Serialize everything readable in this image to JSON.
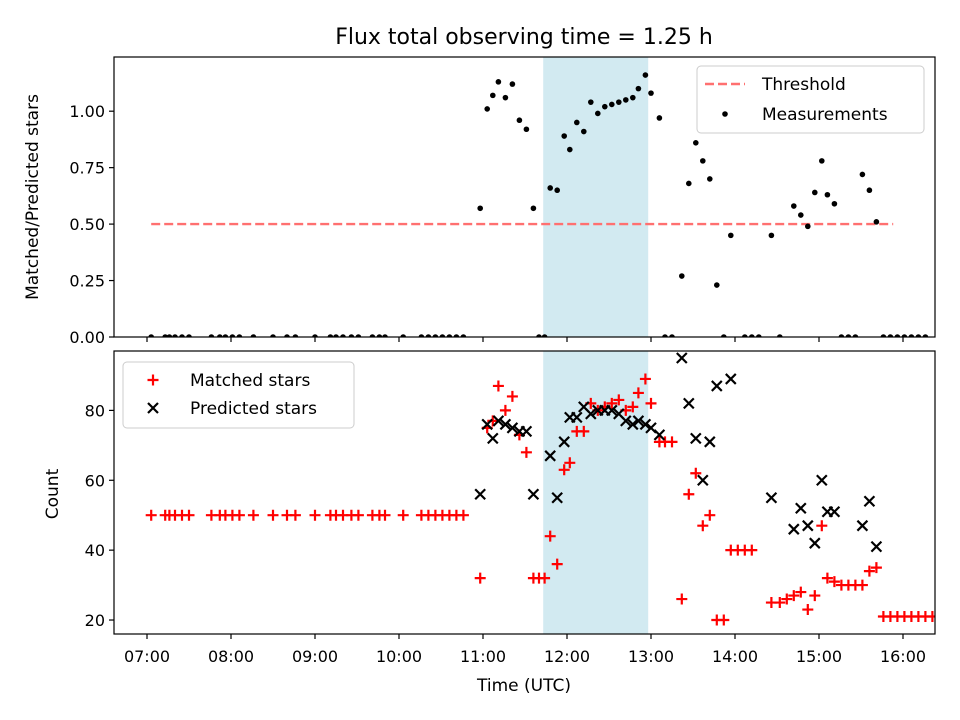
{
  "chart_data": [
    {
      "type": "scatter",
      "title": "Flux total observing time = 1.25 h",
      "xlabel": "",
      "ylabel": "Matched/Predicted stars",
      "ylim": [
        0,
        1.24
      ],
      "yticks": [
        0.0,
        0.25,
        0.5,
        0.75,
        1.0
      ],
      "ytick_labels": [
        "0.00",
        "0.25",
        "0.50",
        "0.75",
        "1.00"
      ],
      "legend": {
        "placement": "top-right",
        "items": [
          "Threshold",
          "Measurements"
        ]
      },
      "highlight_span": {
        "from": "11:43",
        "to": "12:58",
        "color": "#add8e6"
      },
      "threshold": {
        "name": "Threshold",
        "value": 0.5,
        "from": "07:03",
        "to": "15:53",
        "color": "#ff7070"
      },
      "series": [
        {
          "name": "Measurements",
          "marker": "dot",
          "color": "#000000",
          "points": [
            [
              "07:03",
              0
            ],
            [
              "07:13",
              0
            ],
            [
              "07:16",
              0
            ],
            [
              "07:20",
              0
            ],
            [
              "07:25",
              0
            ],
            [
              "07:30",
              0
            ],
            [
              "07:46",
              0
            ],
            [
              "07:52",
              0
            ],
            [
              "07:56",
              0
            ],
            [
              "08:01",
              0
            ],
            [
              "08:06",
              0
            ],
            [
              "08:16",
              0
            ],
            [
              "08:30",
              0
            ],
            [
              "08:40",
              0
            ],
            [
              "08:46",
              0
            ],
            [
              "09:00",
              0
            ],
            [
              "09:11",
              0
            ],
            [
              "09:15",
              0
            ],
            [
              "09:20",
              0
            ],
            [
              "09:26",
              0
            ],
            [
              "09:31",
              0
            ],
            [
              "09:41",
              0
            ],
            [
              "09:46",
              0
            ],
            [
              "09:50",
              0
            ],
            [
              "10:03",
              0
            ],
            [
              "10:16",
              0
            ],
            [
              "10:21",
              0
            ],
            [
              "10:26",
              0
            ],
            [
              "10:31",
              0
            ],
            [
              "10:36",
              0
            ],
            [
              "10:41",
              0
            ],
            [
              "10:46",
              0
            ],
            [
              "10:58",
              0.57
            ],
            [
              "11:03",
              1.01
            ],
            [
              "11:07",
              1.07
            ],
            [
              "11:11",
              1.13
            ],
            [
              "11:16",
              1.06
            ],
            [
              "11:21",
              1.12
            ],
            [
              "11:26",
              0.96
            ],
            [
              "11:31",
              0.92
            ],
            [
              "11:36",
              0.57
            ],
            [
              "11:40",
              0
            ],
            [
              "11:44",
              0
            ],
            [
              "11:48",
              0.66
            ],
            [
              "11:53",
              0.65
            ],
            [
              "11:58",
              0.89
            ],
            [
              "12:02",
              0.83
            ],
            [
              "12:07",
              0.95
            ],
            [
              "12:12",
              0.91
            ],
            [
              "12:17",
              1.04
            ],
            [
              "12:22",
              0.99
            ],
            [
              "12:27",
              1.02
            ],
            [
              "12:32",
              1.03
            ],
            [
              "12:37",
              1.04
            ],
            [
              "12:42",
              1.05
            ],
            [
              "12:47",
              1.06
            ],
            [
              "12:51",
              1.1
            ],
            [
              "12:56",
              1.16
            ],
            [
              "13:00",
              1.08
            ],
            [
              "13:06",
              0.97
            ],
            [
              "13:10",
              0
            ],
            [
              "13:15",
              0
            ],
            [
              "13:22",
              0.27
            ],
            [
              "13:27",
              0.68
            ],
            [
              "13:32",
              0.86
            ],
            [
              "13:37",
              0.78
            ],
            [
              "13:42",
              0.7
            ],
            [
              "13:47",
              0.23
            ],
            [
              "13:52",
              0
            ],
            [
              "13:57",
              0.45
            ],
            [
              "14:07",
              0
            ],
            [
              "14:12",
              0
            ],
            [
              "14:17",
              0
            ],
            [
              "14:26",
              0.45
            ],
            [
              "14:32",
              0
            ],
            [
              "14:42",
              0.58
            ],
            [
              "14:47",
              0.54
            ],
            [
              "14:52",
              0.49
            ],
            [
              "14:57",
              0.64
            ],
            [
              "15:02",
              0.78
            ],
            [
              "15:06",
              0.63
            ],
            [
              "15:11",
              0.59
            ],
            [
              "15:16",
              0
            ],
            [
              "15:21",
              0
            ],
            [
              "15:26",
              0
            ],
            [
              "15:31",
              0.72
            ],
            [
              "15:36",
              0.65
            ],
            [
              "15:41",
              0.51
            ],
            [
              "15:46",
              0
            ],
            [
              "15:51",
              0
            ],
            [
              "15:56",
              0
            ],
            [
              "16:01",
              0
            ],
            [
              "16:06",
              0
            ],
            [
              "16:11",
              0
            ],
            [
              "16:16",
              0
            ]
          ]
        }
      ]
    },
    {
      "type": "scatter",
      "title": "",
      "xlabel": "Time (UTC)",
      "ylabel": "Count",
      "ylim": [
        16,
        97
      ],
      "yticks": [
        20,
        40,
        60,
        80
      ],
      "xticks": [
        "07:00",
        "08:00",
        "09:00",
        "10:00",
        "11:00",
        "12:00",
        "13:00",
        "14:00",
        "15:00",
        "16:00"
      ],
      "legend": {
        "placement": "top-left",
        "items": [
          "Matched stars",
          "Predicted stars"
        ]
      },
      "highlight_span": {
        "from": "11:43",
        "to": "12:58",
        "color": "#add8e6"
      },
      "series": [
        {
          "name": "Matched stars",
          "marker": "plus",
          "color": "#ff0000",
          "points": [
            [
              "07:03",
              50
            ],
            [
              "07:13",
              50
            ],
            [
              "07:16",
              50
            ],
            [
              "07:20",
              50
            ],
            [
              "07:25",
              50
            ],
            [
              "07:30",
              50
            ],
            [
              "07:46",
              50
            ],
            [
              "07:52",
              50
            ],
            [
              "07:56",
              50
            ],
            [
              "08:01",
              50
            ],
            [
              "08:06",
              50
            ],
            [
              "08:16",
              50
            ],
            [
              "08:30",
              50
            ],
            [
              "08:40",
              50
            ],
            [
              "08:46",
              50
            ],
            [
              "09:00",
              50
            ],
            [
              "09:11",
              50
            ],
            [
              "09:15",
              50
            ],
            [
              "09:20",
              50
            ],
            [
              "09:26",
              50
            ],
            [
              "09:31",
              50
            ],
            [
              "09:41",
              50
            ],
            [
              "09:46",
              50
            ],
            [
              "09:50",
              50
            ],
            [
              "10:03",
              50
            ],
            [
              "10:16",
              50
            ],
            [
              "10:21",
              50
            ],
            [
              "10:26",
              50
            ],
            [
              "10:31",
              50
            ],
            [
              "10:36",
              50
            ],
            [
              "10:41",
              50
            ],
            [
              "10:46",
              50
            ],
            [
              "10:58",
              32
            ],
            [
              "11:03",
              75
            ],
            [
              "11:07",
              77
            ],
            [
              "11:11",
              87
            ],
            [
              "11:16",
              80
            ],
            [
              "11:21",
              84
            ],
            [
              "11:26",
              73
            ],
            [
              "11:31",
              68
            ],
            [
              "11:36",
              32
            ],
            [
              "11:40",
              32
            ],
            [
              "11:44",
              32
            ],
            [
              "11:48",
              44
            ],
            [
              "11:53",
              36
            ],
            [
              "11:58",
              63
            ],
            [
              "12:02",
              65
            ],
            [
              "12:07",
              74
            ],
            [
              "12:12",
              74
            ],
            [
              "12:17",
              82
            ],
            [
              "12:22",
              80
            ],
            [
              "12:27",
              81
            ],
            [
              "12:32",
              82
            ],
            [
              "12:37",
              83
            ],
            [
              "12:42",
              80
            ],
            [
              "12:47",
              81
            ],
            [
              "12:51",
              85
            ],
            [
              "12:56",
              89
            ],
            [
              "13:00",
              82
            ],
            [
              "13:06",
              71
            ],
            [
              "13:10",
              71
            ],
            [
              "13:15",
              71
            ],
            [
              "13:22",
              26
            ],
            [
              "13:27",
              56
            ],
            [
              "13:32",
              62
            ],
            [
              "13:37",
              47
            ],
            [
              "13:42",
              50
            ],
            [
              "13:47",
              20
            ],
            [
              "13:52",
              20
            ],
            [
              "13:57",
              40
            ],
            [
              "14:02",
              40
            ],
            [
              "14:07",
              40
            ],
            [
              "14:12",
              40
            ],
            [
              "14:26",
              25
            ],
            [
              "14:32",
              25
            ],
            [
              "14:37",
              26
            ],
            [
              "14:42",
              27
            ],
            [
              "14:47",
              28
            ],
            [
              "14:52",
              23
            ],
            [
              "14:57",
              27
            ],
            [
              "15:02",
              47
            ],
            [
              "15:06",
              32
            ],
            [
              "15:11",
              31
            ],
            [
              "15:16",
              30
            ],
            [
              "15:21",
              30
            ],
            [
              "15:26",
              30
            ],
            [
              "15:31",
              30
            ],
            [
              "15:36",
              34
            ],
            [
              "15:41",
              35
            ],
            [
              "15:46",
              21
            ],
            [
              "15:51",
              21
            ],
            [
              "15:56",
              21
            ],
            [
              "16:01",
              21
            ],
            [
              "16:06",
              21
            ],
            [
              "16:11",
              21
            ],
            [
              "16:16",
              21
            ],
            [
              "16:21",
              21
            ]
          ]
        },
        {
          "name": "Predicted stars",
          "marker": "cross",
          "color": "#000000",
          "points": [
            [
              "10:58",
              56
            ],
            [
              "11:03",
              76
            ],
            [
              "11:07",
              72
            ],
            [
              "11:11",
              77
            ],
            [
              "11:16",
              76
            ],
            [
              "11:21",
              75
            ],
            [
              "11:26",
              74
            ],
            [
              "11:31",
              74
            ],
            [
              "11:36",
              56
            ],
            [
              "11:48",
              67
            ],
            [
              "11:53",
              55
            ],
            [
              "11:58",
              71
            ],
            [
              "12:02",
              78
            ],
            [
              "12:07",
              78
            ],
            [
              "12:12",
              81
            ],
            [
              "12:17",
              79
            ],
            [
              "12:22",
              80
            ],
            [
              "12:27",
              80
            ],
            [
              "12:32",
              80
            ],
            [
              "12:37",
              79
            ],
            [
              "12:42",
              77
            ],
            [
              "12:47",
              76
            ],
            [
              "12:51",
              77
            ],
            [
              "12:56",
              76
            ],
            [
              "13:00",
              75
            ],
            [
              "13:06",
              73
            ],
            [
              "13:22",
              95
            ],
            [
              "13:27",
              82
            ],
            [
              "13:32",
              72
            ],
            [
              "13:37",
              60
            ],
            [
              "13:42",
              71
            ],
            [
              "13:47",
              87
            ],
            [
              "13:57",
              89
            ],
            [
              "14:26",
              55
            ],
            [
              "14:42",
              46
            ],
            [
              "14:47",
              52
            ],
            [
              "14:52",
              47
            ],
            [
              "14:57",
              42
            ],
            [
              "15:02",
              60
            ],
            [
              "15:06",
              51
            ],
            [
              "15:11",
              51
            ],
            [
              "15:31",
              47
            ],
            [
              "15:36",
              54
            ],
            [
              "15:41",
              41
            ]
          ]
        }
      ]
    }
  ]
}
